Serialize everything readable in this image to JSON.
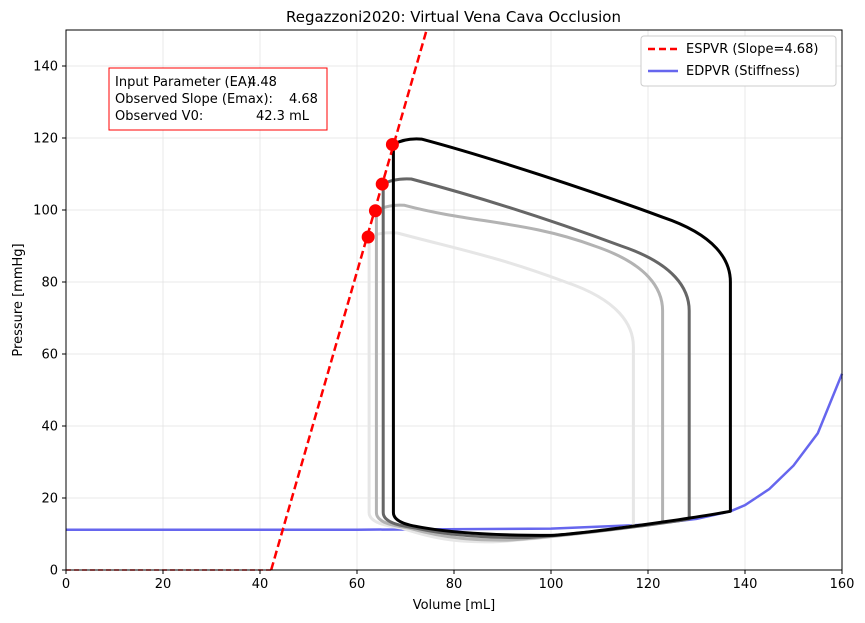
{
  "chart_data": {
    "type": "line",
    "title": "Regazzoni2020: Virtual Vena Cava Occlusion",
    "xlabel": "Volume [mL]",
    "ylabel": "Pressure [mmHg]",
    "xlim": [
      0,
      160
    ],
    "ylim": [
      0,
      150
    ],
    "x_ticks": [
      0,
      20,
      40,
      60,
      80,
      100,
      120,
      140,
      160
    ],
    "y_ticks": [
      0,
      20,
      40,
      60,
      80,
      100,
      120,
      140
    ],
    "x_tick_labels": [
      "0",
      "20",
      "40",
      "60",
      "80",
      "100",
      "120",
      "140",
      "160"
    ],
    "y_tick_labels": [
      "0",
      "20",
      "40",
      "60",
      "80",
      "100",
      "120",
      "140"
    ],
    "grid": true,
    "legend_position": "top-right",
    "legend": [
      {
        "label": "ESPVR (Slope=4.68)",
        "color": "#ff0000",
        "style": "dashed"
      },
      {
        "label": "EDPVR (Stiffness)",
        "color": "#6666ee",
        "style": "solid"
      }
    ],
    "annotation": {
      "lines": [
        {
          "label": "Input Parameter (EA):",
          "value": "4.48"
        },
        {
          "label": "Observed Slope (Emax):",
          "value": "4.68"
        },
        {
          "label": "Observed V0:",
          "value": "42.3 mL"
        }
      ],
      "border_color": "#ff0000"
    },
    "espvr": {
      "slope": 4.68,
      "v0": 42.3,
      "color": "#ff0000",
      "flat_segment": [
        [
          0,
          0
        ],
        [
          42.3,
          0
        ]
      ]
    },
    "edpvr": {
      "color": "#6666ee",
      "points": [
        [
          0,
          11.2
        ],
        [
          60,
          11.2
        ],
        [
          100,
          11.5
        ],
        [
          120,
          12.6
        ],
        [
          130,
          14.2
        ],
        [
          137,
          16.3
        ],
        [
          140,
          18.0
        ],
        [
          145,
          22.5
        ],
        [
          150,
          29.0
        ],
        [
          155,
          38.0
        ],
        [
          160,
          54.5
        ]
      ]
    },
    "endsystolic_points": [
      {
        "v": 62.3,
        "p": 92.5
      },
      {
        "v": 63.8,
        "p": 99.8
      },
      {
        "v": 65.2,
        "p": 107.2
      },
      {
        "v": 67.3,
        "p": 118.2
      }
    ],
    "loops": [
      {
        "name": "",
        "color": "#e6e6e6",
        "ved": 117,
        "ves": 62.3,
        "p_es": 92.5,
        "p_peak": 93.6,
        "p_ed": 12.3,
        "p_ejstart": 62.0,
        "p_min": 7.8,
        "v_min": 88
      },
      {
        "name": "",
        "color": "#b3b3b3",
        "ved": 123,
        "ves": 63.8,
        "p_es": 99.8,
        "p_peak": 101.3,
        "p_ed": 13.2,
        "p_ejstart": 72.0,
        "p_min": 8.3,
        "v_min": 91
      },
      {
        "name": "",
        "color": "#666666",
        "ved": 128.5,
        "ves": 65.2,
        "p_es": 107.2,
        "p_peak": 108.6,
        "p_ed": 14.2,
        "p_ejstart": 72.0,
        "p_min": 9.0,
        "v_min": 95
      },
      {
        "name": "",
        "color": "#000000",
        "ved": 137,
        "ves": 67.3,
        "p_es": 118.2,
        "p_peak": 119.7,
        "p_ed": 16.3,
        "p_ejstart": 80.0,
        "p_min": 9.6,
        "v_min": 100
      }
    ]
  }
}
